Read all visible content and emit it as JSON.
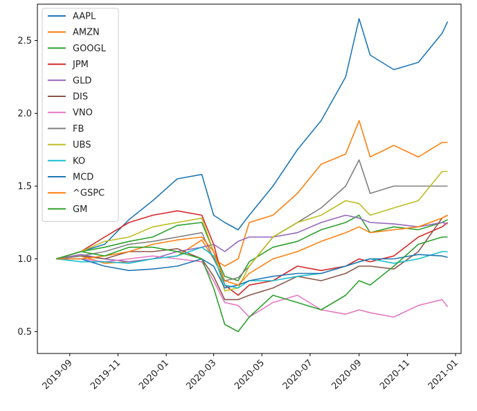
{
  "chart_data": {
    "type": "line",
    "title": "",
    "xlabel": "",
    "ylabel": "",
    "x_ticks": [
      "2019-09",
      "2019-11",
      "2020-01",
      "2020-03",
      "2020-05",
      "2020-07",
      "2020-09",
      "2020-11",
      "2021-01"
    ],
    "y_ticks": [
      0.5,
      1.0,
      1.5,
      2.0,
      2.5
    ],
    "y_tick_labels": [
      "0.5",
      "1.0",
      "1.5",
      "2.0",
      "2.5"
    ],
    "xlim": [
      "2019-07-22",
      "2021-01-08"
    ],
    "ylim": [
      0.35,
      2.75
    ],
    "grid": false,
    "legend_position": "upper-left",
    "x": [
      "2019-08-15",
      "2019-09-15",
      "2019-10-15",
      "2019-11-15",
      "2019-12-15",
      "2020-01-15",
      "2020-02-15",
      "2020-03-01",
      "2020-03-15",
      "2020-04-01",
      "2020-04-15",
      "2020-05-15",
      "2020-06-15",
      "2020-07-15",
      "2020-08-15",
      "2020-09-01",
      "2020-09-15",
      "2020-10-15",
      "2020-11-15",
      "2020-12-15",
      "2020-12-22"
    ],
    "series": [
      {
        "name": "AAPL",
        "color": "#1f77b4",
        "values": [
          1.0,
          1.05,
          1.1,
          1.27,
          1.4,
          1.55,
          1.58,
          1.3,
          1.25,
          1.2,
          1.3,
          1.5,
          1.75,
          1.95,
          2.25,
          2.65,
          2.4,
          2.3,
          2.35,
          2.55,
          2.63
        ]
      },
      {
        "name": "AMZN",
        "color": "#ff7f0e",
        "values": [
          1.0,
          1.02,
          0.97,
          0.98,
          1.0,
          1.02,
          1.13,
          1.0,
          0.95,
          1.0,
          1.25,
          1.3,
          1.45,
          1.65,
          1.72,
          1.95,
          1.7,
          1.78,
          1.7,
          1.8,
          1.8
        ]
      },
      {
        "name": "GOOGL",
        "color": "#2ca02c",
        "values": [
          1.0,
          1.05,
          1.08,
          1.12,
          1.15,
          1.23,
          1.25,
          1.05,
          0.88,
          0.85,
          0.98,
          1.08,
          1.12,
          1.2,
          1.25,
          1.3,
          1.18,
          1.22,
          1.2,
          1.25,
          1.27
        ]
      },
      {
        "name": "JPM",
        "color": "#d62728",
        "values": [
          1.0,
          1.05,
          1.15,
          1.25,
          1.3,
          1.33,
          1.3,
          1.1,
          0.82,
          0.75,
          0.82,
          0.85,
          0.95,
          0.92,
          0.95,
          1.0,
          0.98,
          1.02,
          1.15,
          1.22,
          1.25
        ]
      },
      {
        "name": "GLD",
        "color": "#9467bd",
        "values": [
          1.0,
          1.03,
          1.0,
          0.98,
          1.0,
          1.05,
          1.08,
          1.1,
          1.05,
          1.12,
          1.15,
          1.15,
          1.18,
          1.25,
          1.3,
          1.28,
          1.25,
          1.24,
          1.22,
          1.25,
          1.24
        ]
      },
      {
        "name": "DIS",
        "color": "#8c564b",
        "values": [
          1.0,
          1.02,
          1.0,
          1.05,
          1.05,
          1.07,
          1.0,
          0.88,
          0.72,
          0.72,
          0.75,
          0.8,
          0.88,
          0.85,
          0.9,
          0.95,
          0.95,
          0.93,
          1.05,
          1.28,
          1.3
        ]
      },
      {
        "name": "VNO",
        "color": "#e377c2",
        "values": [
          1.0,
          1.0,
          0.98,
          1.0,
          1.02,
          1.0,
          0.98,
          0.85,
          0.7,
          0.68,
          0.6,
          0.7,
          0.75,
          0.65,
          0.62,
          0.65,
          0.63,
          0.6,
          0.68,
          0.72,
          0.67
        ]
      },
      {
        "name": "FB",
        "color": "#7f7f7f",
        "values": [
          1.0,
          1.02,
          1.05,
          1.1,
          1.12,
          1.15,
          1.18,
          1.0,
          0.85,
          0.87,
          0.95,
          1.15,
          1.25,
          1.35,
          1.5,
          1.68,
          1.45,
          1.5,
          1.5,
          1.5,
          1.5
        ]
      },
      {
        "name": "UBS",
        "color": "#bcbd22",
        "values": [
          1.0,
          1.05,
          1.12,
          1.15,
          1.22,
          1.25,
          1.28,
          1.05,
          0.78,
          0.8,
          0.95,
          1.15,
          1.25,
          1.3,
          1.4,
          1.38,
          1.3,
          1.35,
          1.4,
          1.6,
          1.6
        ]
      },
      {
        "name": "KO",
        "color": "#17becf",
        "values": [
          1.0,
          0.98,
          0.98,
          0.97,
          1.0,
          1.02,
          1.08,
          1.02,
          0.82,
          0.8,
          0.85,
          0.85,
          0.88,
          0.9,
          0.95,
          0.98,
          1.0,
          0.97,
          1.0,
          1.05,
          1.05
        ]
      },
      {
        "name": "MCD",
        "color": "#1f77b4",
        "values": [
          1.0,
          1.0,
          0.95,
          0.92,
          0.93,
          0.95,
          1.0,
          0.95,
          0.8,
          0.82,
          0.85,
          0.88,
          0.9,
          0.9,
          0.95,
          0.98,
          1.0,
          1.0,
          1.03,
          1.02,
          1.01
        ]
      },
      {
        "name": "^GSPC",
        "color": "#ff7f0e",
        "values": [
          1.0,
          1.0,
          1.02,
          1.05,
          1.1,
          1.13,
          1.15,
          1.05,
          0.85,
          0.82,
          0.9,
          1.0,
          1.05,
          1.12,
          1.18,
          1.22,
          1.18,
          1.2,
          1.22,
          1.28,
          1.3
        ]
      },
      {
        "name": "GM",
        "color": "#2ca02c",
        "values": [
          1.0,
          1.05,
          1.02,
          1.08,
          1.08,
          1.05,
          1.0,
          0.8,
          0.55,
          0.5,
          0.6,
          0.75,
          0.7,
          0.65,
          0.75,
          0.85,
          0.82,
          0.95,
          1.1,
          1.15,
          1.15
        ]
      }
    ]
  }
}
